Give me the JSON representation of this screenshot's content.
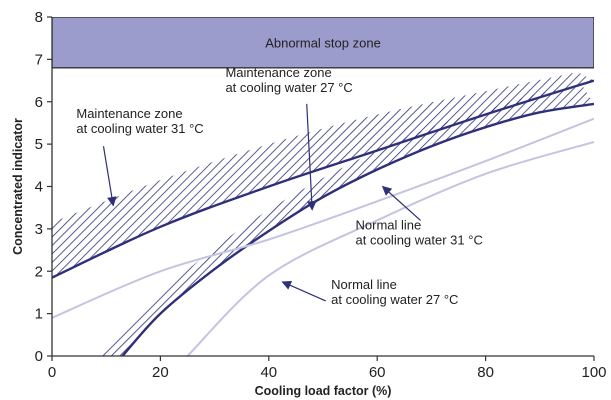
{
  "colors": {
    "stop_zone_fill": "#9b9bcc",
    "main_line": "#2f2f7a",
    "light_line": "#c4c4e2",
    "hatch": "#2f2f7a",
    "axis": "#333333"
  },
  "chart_data": {
    "type": "line",
    "xlabel": "Cooling load factor (%)",
    "ylabel": "Concentrated indicator",
    "xlim": [
      0,
      100
    ],
    "ylim": [
      0,
      8
    ],
    "xticks": [
      0,
      20,
      40,
      60,
      80,
      100
    ],
    "yticks": [
      0,
      1,
      2,
      3,
      4,
      5,
      6,
      7,
      8
    ],
    "grid": false,
    "stop_zone": {
      "label": "Abnormal stop zone",
      "y_from": 6.8,
      "y_to": 8
    },
    "series": [
      {
        "key": "limit31",
        "style": "dark",
        "x": [
          0,
          20,
          40,
          60,
          80,
          100
        ],
        "y": [
          1.85,
          3.05,
          4.0,
          4.85,
          5.7,
          6.5
        ]
      },
      {
        "key": "zone31_upper",
        "style": "hatch-edge",
        "x": [
          0,
          20,
          40,
          60,
          80,
          97
        ],
        "y": [
          3.15,
          4.15,
          5.0,
          5.7,
          6.25,
          6.7
        ]
      },
      {
        "key": "limit27",
        "style": "dark",
        "x": [
          13,
          20,
          30,
          40,
          50,
          60,
          70,
          80,
          90,
          100
        ],
        "y": [
          0,
          1.0,
          2.05,
          2.95,
          3.75,
          4.4,
          4.95,
          5.4,
          5.75,
          5.95
        ]
      },
      {
        "key": "zone27_upper",
        "style": "hatch-edge",
        "x": [
          9,
          20,
          30,
          40,
          50,
          60,
          70,
          80,
          90,
          98
        ],
        "y": [
          0,
          1.45,
          2.55,
          3.45,
          4.2,
          4.85,
          5.4,
          5.8,
          6.2,
          6.35
        ]
      },
      {
        "key": "normal31",
        "style": "light",
        "x": [
          0,
          20,
          40,
          60,
          80,
          100
        ],
        "y": [
          0.9,
          2.0,
          2.75,
          3.65,
          4.6,
          5.6
        ]
      },
      {
        "key": "normal27",
        "style": "light",
        "x": [
          25,
          40,
          60,
          80,
          100
        ],
        "y": [
          0,
          1.9,
          3.2,
          4.3,
          5.05
        ]
      }
    ],
    "annotations": [
      {
        "key": "mz27",
        "lines": [
          "Maintenance zone",
          "at cooling water 27 °C"
        ],
        "text_at": [
          32,
          6.58
        ],
        "arrow_from": [
          47,
          5.95
        ],
        "arrow_to": [
          48,
          3.45
        ]
      },
      {
        "key": "mz31",
        "lines": [
          "Maintenance zone",
          "at cooling water 31 °C"
        ],
        "text_at": [
          4.5,
          5.62
        ],
        "arrow_from": [
          9.5,
          4.95
        ],
        "arrow_to": [
          11.3,
          3.55
        ]
      },
      {
        "key": "nl31",
        "lines": [
          "Normal line",
          "at cooling water 31 °C"
        ],
        "text_at": [
          56,
          2.98
        ],
        "arrow_from": [
          68,
          3.2
        ],
        "arrow_to": [
          61,
          4.0
        ]
      },
      {
        "key": "nl27",
        "lines": [
          "Normal line",
          "at cooling water 27 °C"
        ],
        "text_at": [
          51.5,
          1.58
        ],
        "arrow_from": [
          50.5,
          1.3
        ],
        "arrow_to": [
          42.5,
          1.75
        ]
      }
    ]
  }
}
